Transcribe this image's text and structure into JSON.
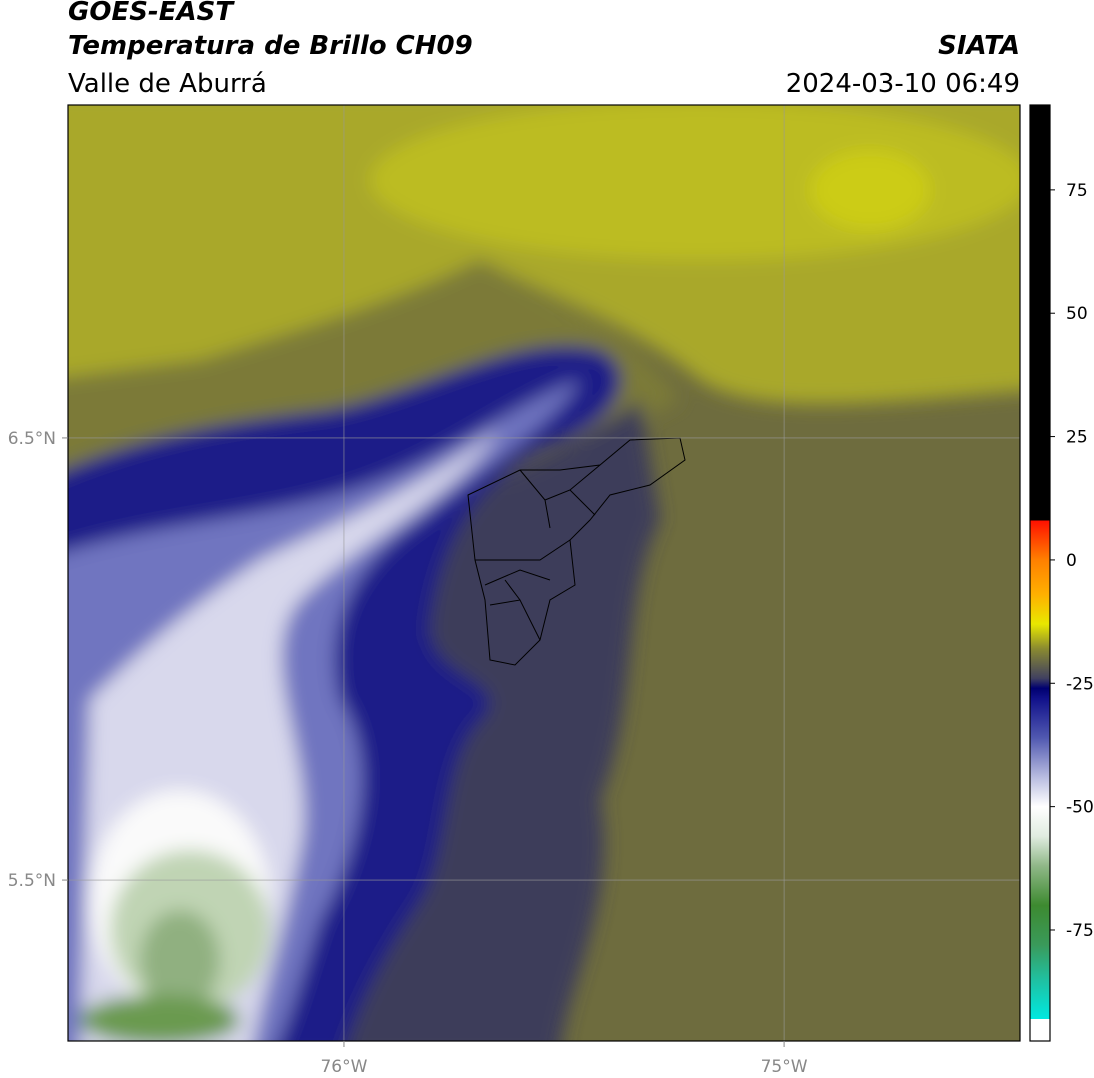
{
  "header": {
    "title": "GOES-EAST",
    "subtitle": "Temperatura de Brillo CH09",
    "region": "Valle de Aburrá",
    "source": "SIATA",
    "datetime": "2024-03-10 06:49"
  },
  "map": {
    "xlim": [
      -76.627,
      -74.464
    ],
    "ylim": [
      5.136,
      7.253
    ],
    "xticks": [
      {
        "value": -76,
        "label": "76°W"
      },
      {
        "value": -75,
        "label": "75°W"
      }
    ],
    "yticks": [
      {
        "value": 6.5,
        "label": "6.5°N"
      },
      {
        "value": 5.5,
        "label": "5.5°N"
      }
    ],
    "grid": true
  },
  "colorbar": {
    "lim": [
      -97.5,
      92.2
    ],
    "ticks": [
      75,
      50,
      25,
      0,
      -25,
      -50,
      -75
    ],
    "stops": [
      {
        "value": -97.5,
        "color": "#ffffff"
      },
      {
        "value": -93,
        "color": "#ffffff"
      },
      {
        "value": -93,
        "color": "#00e8e0"
      },
      {
        "value": -85,
        "color": "#20c0a0"
      },
      {
        "value": -78,
        "color": "#3a9a5a"
      },
      {
        "value": -70,
        "color": "#3d8a30"
      },
      {
        "value": -62,
        "color": "#90b888"
      },
      {
        "value": -56,
        "color": "#e0ece0"
      },
      {
        "value": -50,
        "color": "#ffffff"
      },
      {
        "value": -44,
        "color": "#b8bce0"
      },
      {
        "value": -36,
        "color": "#5058b0"
      },
      {
        "value": -28,
        "color": "#10108a"
      },
      {
        "value": -26,
        "color": "#000070"
      },
      {
        "value": -24,
        "color": "#404060"
      },
      {
        "value": -18,
        "color": "#8a8a30"
      },
      {
        "value": -13,
        "color": "#e8e800"
      },
      {
        "value": -7,
        "color": "#ffb000"
      },
      {
        "value": 0,
        "color": "#ff8000"
      },
      {
        "value": 8,
        "color": "#ff1000"
      },
      {
        "value": 8,
        "color": "#000000"
      },
      {
        "value": 92.2,
        "color": "#000000"
      }
    ]
  }
}
